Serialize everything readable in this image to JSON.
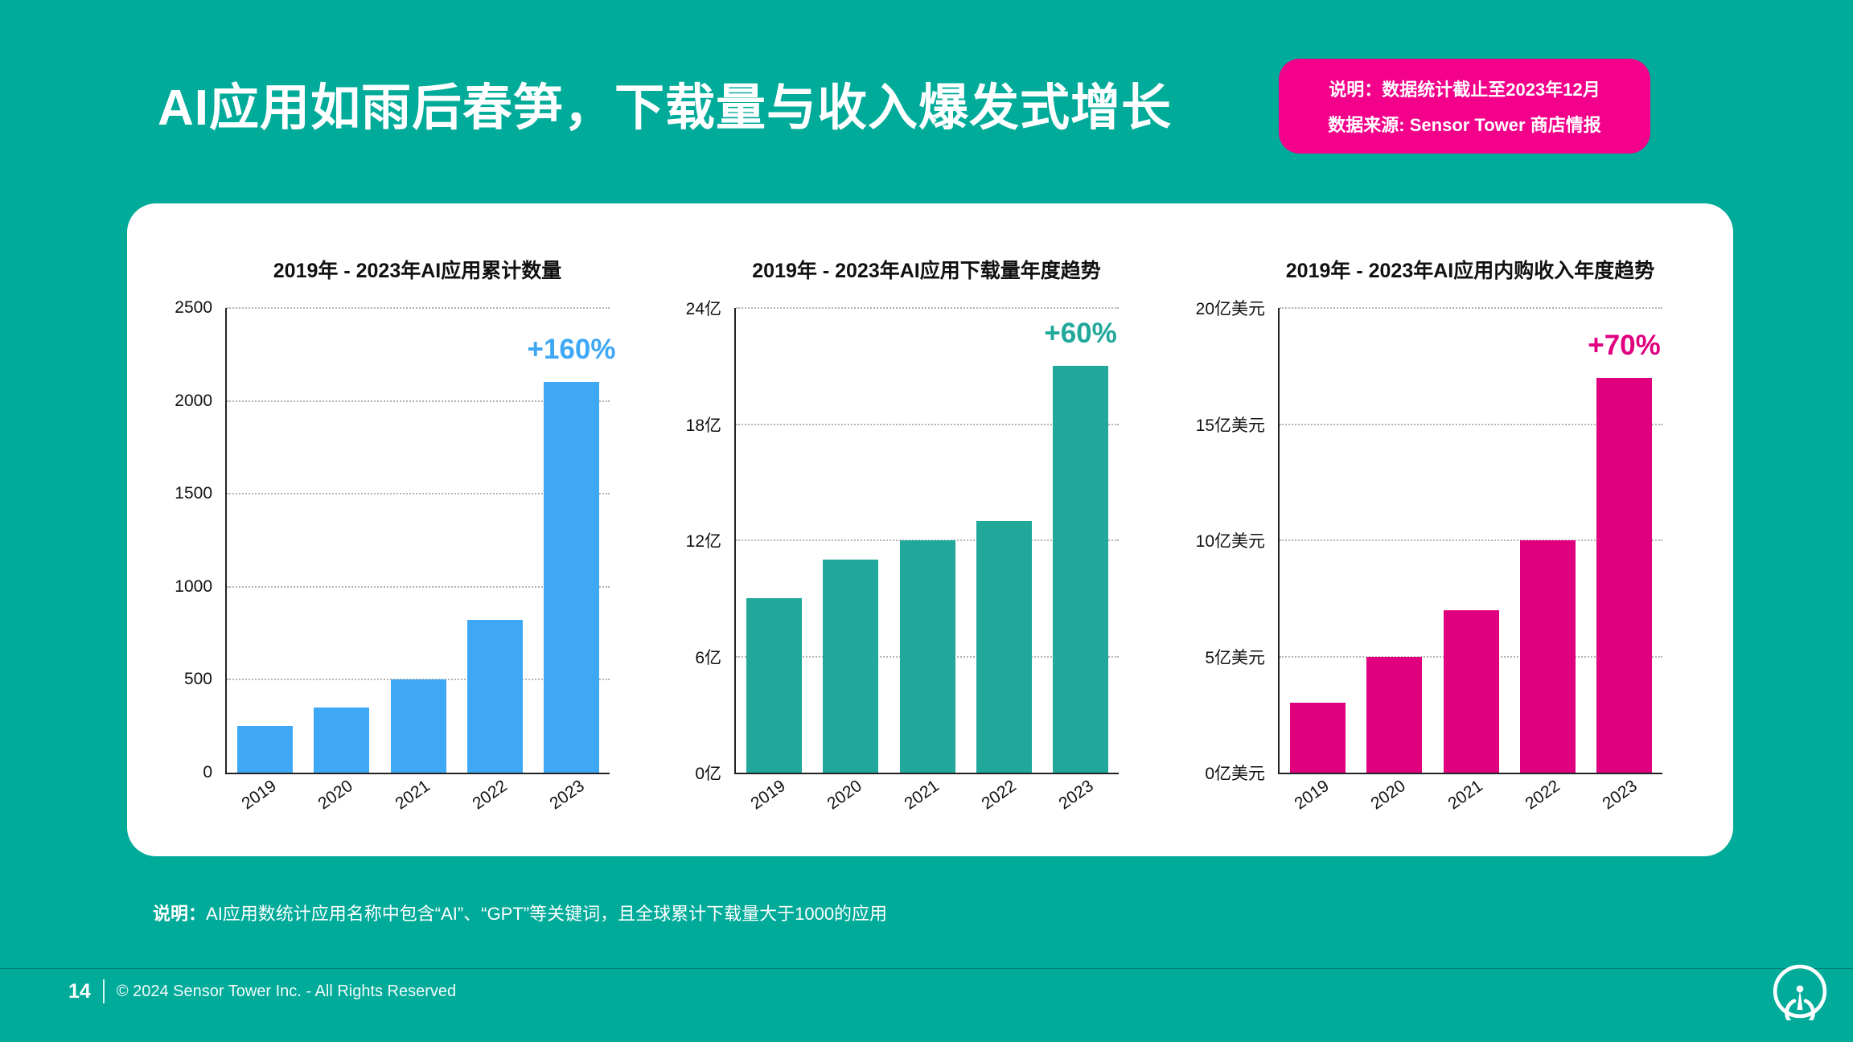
{
  "slide": {
    "title": "AI应用如雨后春笋，下载量与收入爆发式增长",
    "note_badge": {
      "line1": "说明：数据统计截止至2023年12月",
      "line2": "数据来源: Sensor Tower 商店情报"
    },
    "footnote_label": "说明：",
    "footnote_text": "AI应用数统计应用名称中包含“AI”、“GPT”等关键词，且全球累计下载量大于1000的应用",
    "footer": {
      "page_number": "14",
      "copyright": "© 2024 Sensor Tower Inc. - All Rights Reserved"
    },
    "logo_name": "sensor-tower-logo"
  },
  "colors": {
    "background": "#00AB9A",
    "badge_pink": "#F3008B",
    "card": "#FFFFFF",
    "blue": "#3EA8F5",
    "teal": "#21A89B",
    "pink": "#E0007F",
    "axis": "#222222",
    "grid": "#B3B3B3"
  },
  "chart_data": [
    {
      "type": "bar",
      "title": "2019年 - 2023年AI应用累计数量",
      "categories": [
        "2019",
        "2020",
        "2021",
        "2022",
        "2023"
      ],
      "values": [
        250,
        350,
        500,
        820,
        2100
      ],
      "annotation": "+160%",
      "annotation_on": "2023",
      "color": "#3EA8F5",
      "ylim": [
        0,
        2500
      ],
      "yticks": [
        {
          "value": 0,
          "label": "0"
        },
        {
          "value": 500,
          "label": "500"
        },
        {
          "value": 1000,
          "label": "1000"
        },
        {
          "value": 1500,
          "label": "1500"
        },
        {
          "value": 2000,
          "label": "2000"
        },
        {
          "value": 2500,
          "label": "2500"
        }
      ],
      "grid": "horizontal-dotted",
      "legend": "none"
    },
    {
      "type": "bar",
      "title": "2019年 - 2023年AI应用下载量年度趋势",
      "categories": [
        "2019",
        "2020",
        "2021",
        "2022",
        "2023"
      ],
      "values": [
        9,
        11,
        12,
        13,
        21
      ],
      "unit": "亿",
      "annotation": "+60%",
      "annotation_on": "2023",
      "color": "#21A89B",
      "ylim": [
        0,
        24
      ],
      "yticks": [
        {
          "value": 0,
          "label": "0亿"
        },
        {
          "value": 6,
          "label": "6亿"
        },
        {
          "value": 12,
          "label": "12亿"
        },
        {
          "value": 18,
          "label": "18亿"
        },
        {
          "value": 24,
          "label": "24亿"
        }
      ],
      "grid": "horizontal-dotted",
      "legend": "none"
    },
    {
      "type": "bar",
      "title": "2019年 - 2023年AI应用内购收入年度趋势",
      "categories": [
        "2019",
        "2020",
        "2021",
        "2022",
        "2023"
      ],
      "values": [
        3,
        5,
        7,
        10,
        17
      ],
      "unit": "亿美元",
      "annotation": "+70%",
      "annotation_on": "2023",
      "color": "#E0007F",
      "ylim": [
        0,
        20
      ],
      "yticks": [
        {
          "value": 0,
          "label": "0亿美元"
        },
        {
          "value": 5,
          "label": "5亿美元"
        },
        {
          "value": 10,
          "label": "10亿美元"
        },
        {
          "value": 15,
          "label": "15亿美元"
        },
        {
          "value": 20,
          "label": "20亿美元"
        }
      ],
      "grid": "horizontal-dotted",
      "legend": "none"
    }
  ]
}
